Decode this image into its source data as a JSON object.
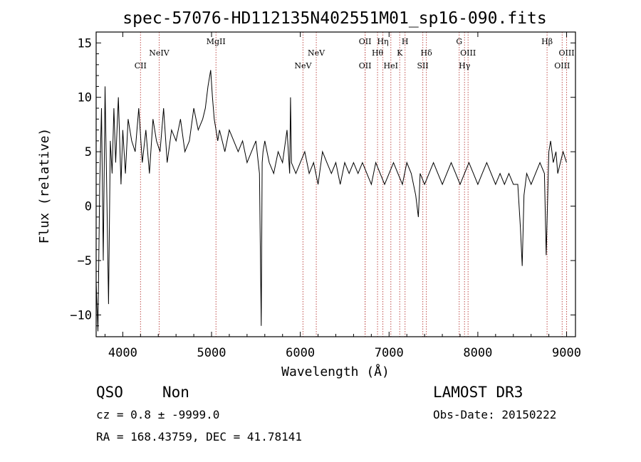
{
  "chart_data": {
    "type": "line",
    "title": "spec-57076-HD112135N402551M01_sp16-090.fits",
    "xlabel": "Wavelength (Å)",
    "ylabel": "Flux (relative)",
    "xlim": [
      3700,
      9100
    ],
    "ylim": [
      -12,
      16
    ],
    "xticks": [
      4000,
      5000,
      6000,
      7000,
      8000,
      9000
    ],
    "yticks": [
      -10,
      -5,
      0,
      5,
      10,
      15
    ],
    "series": [
      {
        "color": "#000000",
        "x": [
          3700,
          3720,
          3740,
          3760,
          3780,
          3800,
          3820,
          3840,
          3860,
          3880,
          3900,
          3920,
          3950,
          3980,
          4000,
          4030,
          4060,
          4100,
          4140,
          4180,
          4220,
          4260,
          4300,
          4340,
          4380,
          4420,
          4460,
          4500,
          4550,
          4600,
          4650,
          4700,
          4750,
          4800,
          4850,
          4900,
          4930,
          4960,
          4990,
          5010,
          5030,
          5050,
          5070,
          5090,
          5120,
          5150,
          5200,
          5250,
          5300,
          5350,
          5400,
          5450,
          5500,
          5540,
          5560,
          5570,
          5580,
          5600,
          5650,
          5700,
          5750,
          5800,
          5850,
          5880,
          5890,
          5900,
          5950,
          6000,
          6050,
          6100,
          6150,
          6200,
          6250,
          6300,
          6350,
          6400,
          6450,
          6500,
          6550,
          6600,
          6650,
          6700,
          6750,
          6800,
          6850,
          6900,
          6950,
          7000,
          7050,
          7100,
          7150,
          7200,
          7250,
          7300,
          7330,
          7350,
          7400,
          7450,
          7500,
          7550,
          7600,
          7650,
          7700,
          7750,
          7800,
          7850,
          7900,
          7950,
          8000,
          8050,
          8100,
          8150,
          8200,
          8250,
          8300,
          8350,
          8400,
          8450,
          8480,
          8500,
          8520,
          8550,
          8600,
          8650,
          8700,
          8750,
          8770,
          8800,
          8820,
          8850,
          8880,
          8900,
          8930,
          8960,
          9000
        ],
        "values": [
          -7,
          -11.5,
          2,
          9,
          -5,
          11,
          1,
          -9,
          6,
          3,
          9,
          4,
          10,
          2,
          7,
          3,
          8,
          6,
          5,
          9,
          4,
          7,
          3,
          8,
          6,
          5,
          9,
          4,
          7,
          6,
          8,
          5,
          6,
          9,
          7,
          8,
          9,
          11,
          12.5,
          10,
          8,
          7,
          6,
          7,
          6,
          5,
          7,
          6,
          5,
          6,
          4,
          5,
          6,
          3,
          -11,
          4,
          5,
          6,
          4,
          3,
          5,
          4,
          7,
          3,
          10,
          4,
          3,
          4,
          5,
          3,
          4,
          2,
          5,
          4,
          3,
          4,
          2,
          4,
          3,
          4,
          3,
          4,
          3,
          2,
          4,
          3,
          2,
          3,
          4,
          3,
          2,
          4,
          3,
          1,
          -1,
          3,
          2,
          3,
          4,
          3,
          2,
          3,
          4,
          3,
          2,
          3,
          4,
          3,
          2,
          3,
          4,
          3,
          2,
          3,
          2,
          3,
          2,
          2,
          -2,
          -5.5,
          1,
          3,
          2,
          3,
          4,
          3,
          -4.5,
          5,
          6,
          4,
          5,
          3,
          4,
          5,
          4
        ]
      }
    ],
    "lines": [
      {
        "label": "CII",
        "wavelength": 4200,
        "row": 3
      },
      {
        "label": "NeIV",
        "wavelength": 4410,
        "row": 2
      },
      {
        "label": "MgII",
        "wavelength": 5050,
        "row": 1
      },
      {
        "label": "NeV",
        "wavelength": 6030,
        "row": 3
      },
      {
        "label": "NeV",
        "wavelength": 6180,
        "row": 2
      },
      {
        "label": "OII",
        "wavelength": 6730,
        "row": 1
      },
      {
        "label": "OII",
        "wavelength": 6730,
        "row": 3
      },
      {
        "label": "Hθ",
        "wavelength": 6870,
        "row": 2
      },
      {
        "label": "Hη",
        "wavelength": 6930,
        "row": 1
      },
      {
        "label": "HeI",
        "wavelength": 7020,
        "row": 3
      },
      {
        "label": "K",
        "wavelength": 7120,
        "row": 2
      },
      {
        "label": "H",
        "wavelength": 7180,
        "row": 1
      },
      {
        "label": "SII",
        "wavelength": 7380,
        "row": 3
      },
      {
        "label": "Hδ",
        "wavelength": 7420,
        "row": 2
      },
      {
        "label": "G",
        "wavelength": 7790,
        "row": 1
      },
      {
        "label": "Hγ",
        "wavelength": 7850,
        "row": 3
      },
      {
        "label": "OIII",
        "wavelength": 7890,
        "row": 2
      },
      {
        "label": "Hβ",
        "wavelength": 8780,
        "row": 1
      },
      {
        "label": "OIII",
        "wavelength": 8950,
        "row": 3
      },
      {
        "label": "OIII",
        "wavelength": 9000,
        "row": 2
      }
    ],
    "line_color": "#c0504d"
  },
  "info": {
    "class": "QSO",
    "subclass": "Non",
    "survey": "LAMOST DR3",
    "cz": "cz = 0.8 ± -9999.0",
    "obs_date": "Obs-Date: 20150222",
    "coords": "RA = 168.43759, DEC =  41.78141"
  }
}
